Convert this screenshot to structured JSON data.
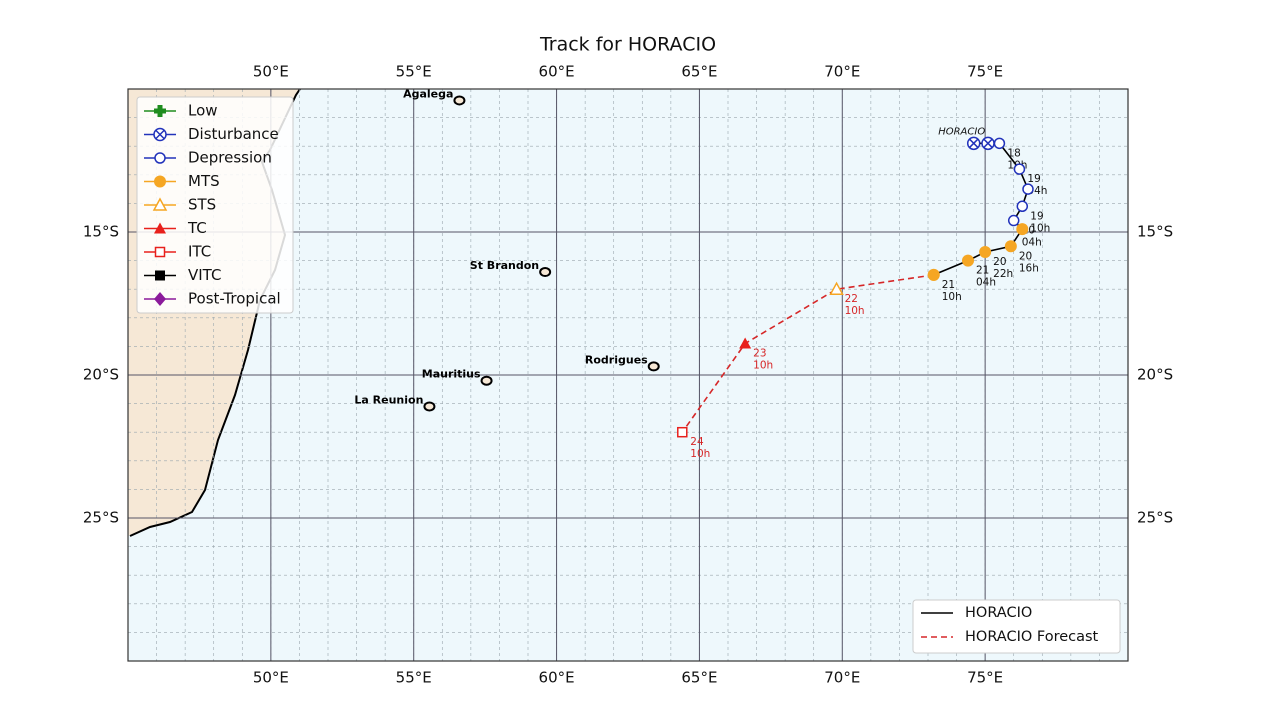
{
  "chart_data": {
    "type": "track",
    "title": "Track for HORACIO",
    "xlim": [
      45,
      80
    ],
    "ylim": [
      -30,
      -10
    ],
    "xticks": [
      {
        "value": 50,
        "label": "50°E"
      },
      {
        "value": 55,
        "label": "55°E"
      },
      {
        "value": 60,
        "label": "60°E"
      },
      {
        "value": 65,
        "label": "65°E"
      },
      {
        "value": 70,
        "label": "70°E"
      },
      {
        "value": 75,
        "label": "75°E"
      }
    ],
    "yticks": [
      {
        "value": -15,
        "label": "15°S"
      },
      {
        "value": -20,
        "label": "20°S"
      },
      {
        "value": -25,
        "label": "25°S"
      }
    ],
    "grid": true,
    "intensity_legend": [
      {
        "name": "Low",
        "color": "#1e8c1e",
        "marker": "plus"
      },
      {
        "name": "Disturbance",
        "color": "#2233bb",
        "marker": "circle-x"
      },
      {
        "name": "Depression",
        "color": "#2233bb",
        "marker": "circle-open"
      },
      {
        "name": "MTS",
        "color": "#f5a623",
        "marker": "circle"
      },
      {
        "name": "STS",
        "color": "#f5a623",
        "marker": "triangle-open"
      },
      {
        "name": "TC",
        "color": "#e8201c",
        "marker": "triangle"
      },
      {
        "name": "ITC",
        "color": "#e8201c",
        "marker": "square-open"
      },
      {
        "name": "VITC",
        "color": "#000000",
        "marker": "square"
      },
      {
        "name": "Post-Tropical",
        "color": "#8b1a9b",
        "marker": "diamond"
      }
    ],
    "intensity_legend_corner": "upper left",
    "track_legend_corner": "lower right",
    "series": [
      {
        "name": "HORACIO",
        "color": "#000000",
        "line_style": "solid",
        "x": [
          74.6,
          75.1,
          75.5,
          76.2,
          76.5,
          76.3,
          76.0,
          76.3,
          75.9,
          75.0,
          74.4,
          73.2
        ],
        "values": [
          -11.9,
          -11.9,
          -11.9,
          -12.8,
          -13.5,
          -14.1,
          -14.6,
          -14.9,
          -15.5,
          -15.7,
          -16.0,
          -16.5
        ],
        "intensity": [
          "Disturbance",
          "Disturbance",
          "Depression",
          "Depression",
          "Depression",
          "Depression",
          "Depression",
          "MTS",
          "MTS",
          "MTS",
          "MTS",
          "MTS"
        ],
        "point_labels": [
          null,
          null,
          [
            "18",
            "10h"
          ],
          [
            "19",
            "04h"
          ],
          null,
          [
            "19",
            "10h"
          ],
          [
            "20",
            "04h"
          ],
          null,
          [
            "20",
            "16h"
          ],
          [
            "20",
            "22h"
          ],
          [
            "21",
            "04h"
          ],
          [
            "21",
            "10h"
          ]
        ]
      },
      {
        "name": "HORACIO Forecast",
        "color": "#d62728",
        "line_style": "dashed",
        "x": [
          73.2,
          69.8,
          66.6,
          64.4
        ],
        "values": [
          -16.5,
          -17.0,
          -18.9,
          -22.0
        ],
        "intensity": [
          "MTS",
          "STS",
          "TC",
          "ITC"
        ],
        "point_labels": [
          null,
          [
            "22",
            "10h"
          ],
          [
            "23",
            "10h"
          ],
          [
            "24",
            "10h"
          ]
        ]
      }
    ],
    "places": [
      {
        "name": "Agalega",
        "lon": 56.6,
        "lat": -10.4
      },
      {
        "name": "St Brandon",
        "lon": 59.6,
        "lat": -16.4
      },
      {
        "name": "Rodrigues",
        "lon": 63.4,
        "lat": -19.7
      },
      {
        "name": "Mauritius",
        "lon": 57.55,
        "lat": -20.2
      },
      {
        "name": "La Reunion",
        "lon": 55.55,
        "lat": -21.1
      }
    ]
  }
}
